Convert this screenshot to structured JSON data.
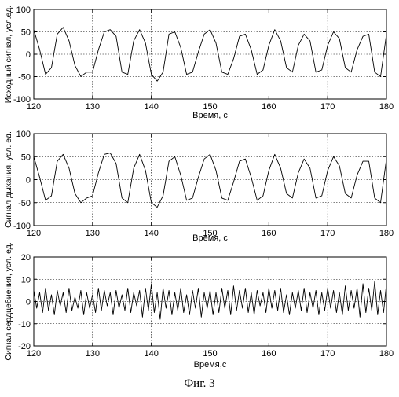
{
  "figure": {
    "caption": "Фиг. 3"
  },
  "chart_data": [
    {
      "type": "line",
      "xlabel": "Время, с",
      "ylabel": "Исходный сигнал, усл.ед.",
      "xlim": [
        120,
        180
      ],
      "ylim": [
        -100,
        100
      ],
      "xticks": [
        120,
        130,
        140,
        150,
        160,
        170,
        180
      ],
      "yticks": [
        100,
        50,
        0,
        -50,
        -100
      ],
      "grid": true,
      "series": [
        {
          "x": [
            120,
            121,
            122,
            123,
            124,
            125,
            126,
            127,
            128,
            129,
            130,
            131,
            132,
            133,
            134,
            135,
            136,
            137,
            138,
            139,
            140,
            141,
            142,
            143,
            144,
            145,
            146,
            147,
            148,
            149,
            150,
            151,
            152,
            153,
            154,
            155,
            156,
            157,
            158,
            159,
            160,
            161,
            162,
            163,
            164,
            165,
            166,
            167,
            168,
            169,
            170,
            171,
            172,
            173,
            174,
            175,
            176,
            177,
            178,
            179,
            180
          ],
          "y": [
            55,
            10,
            -45,
            -30,
            45,
            60,
            30,
            -25,
            -50,
            -40,
            -40,
            10,
            50,
            55,
            40,
            -40,
            -45,
            30,
            55,
            25,
            -45,
            -60,
            -40,
            45,
            50,
            15,
            -45,
            -40,
            5,
            45,
            55,
            25,
            -40,
            -45,
            -10,
            40,
            45,
            10,
            -45,
            -35,
            20,
            55,
            30,
            -30,
            -40,
            20,
            45,
            30,
            -40,
            -35,
            20,
            50,
            35,
            -30,
            -40,
            10,
            40,
            45,
            -40,
            -50,
            45
          ]
        }
      ]
    },
    {
      "type": "line",
      "xlabel": "Время, с",
      "ylabel": "Сигнал дыхания, усл. ед.",
      "xlim": [
        120,
        180
      ],
      "ylim": [
        -100,
        100
      ],
      "xticks": [
        120,
        130,
        140,
        150,
        160,
        170,
        180
      ],
      "yticks": [
        100,
        50,
        0,
        -50,
        -100
      ],
      "grid": true,
      "series": [
        {
          "x": [
            120,
            121,
            122,
            123,
            124,
            125,
            126,
            127,
            128,
            129,
            130,
            131,
            132,
            133,
            134,
            135,
            136,
            137,
            138,
            139,
            140,
            141,
            142,
            143,
            144,
            145,
            146,
            147,
            148,
            149,
            150,
            151,
            152,
            153,
            154,
            155,
            156,
            157,
            158,
            159,
            160,
            161,
            162,
            163,
            164,
            165,
            166,
            167,
            168,
            169,
            170,
            171,
            172,
            173,
            174,
            175,
            176,
            177,
            178,
            179,
            180
          ],
          "y": [
            50,
            5,
            -45,
            -35,
            40,
            55,
            25,
            -30,
            -50,
            -40,
            -35,
            15,
            55,
            58,
            35,
            -40,
            -50,
            25,
            55,
            20,
            -50,
            -60,
            -35,
            40,
            50,
            10,
            -45,
            -40,
            5,
            45,
            55,
            20,
            -40,
            -45,
            -5,
            40,
            45,
            5,
            -45,
            -35,
            20,
            55,
            25,
            -30,
            -40,
            15,
            45,
            25,
            -40,
            -35,
            20,
            50,
            30,
            -30,
            -40,
            10,
            40,
            40,
            -40,
            -50,
            45
          ]
        }
      ]
    },
    {
      "type": "line",
      "xlabel": "Время,с",
      "ylabel": "Сигнал сердцебиения, усл. ед.",
      "xlim": [
        120,
        180
      ],
      "ylim": [
        -20,
        20
      ],
      "xticks": [
        120,
        130,
        140,
        150,
        160,
        170,
        180
      ],
      "yticks": [
        20,
        10,
        0,
        -10,
        -20
      ],
      "grid": true,
      "series": [
        {
          "x": [
            120,
            120.5,
            121,
            121.5,
            122,
            122.5,
            123,
            123.5,
            124,
            124.5,
            125,
            125.5,
            126,
            126.5,
            127,
            127.5,
            128,
            128.5,
            129,
            129.5,
            130,
            130.5,
            131,
            131.5,
            132,
            132.5,
            133,
            133.5,
            134,
            134.5,
            135,
            135.5,
            136,
            136.5,
            137,
            137.5,
            138,
            138.5,
            139,
            139.5,
            140,
            140.5,
            141,
            141.5,
            142,
            142.5,
            143,
            143.5,
            144,
            144.5,
            145,
            145.5,
            146,
            146.5,
            147,
            147.5,
            148,
            148.5,
            149,
            149.5,
            150,
            150.5,
            151,
            151.5,
            152,
            152.5,
            153,
            153.5,
            154,
            154.5,
            155,
            155.5,
            156,
            156.5,
            157,
            157.5,
            158,
            158.5,
            159,
            159.5,
            160,
            160.5,
            161,
            161.5,
            162,
            162.5,
            163,
            163.5,
            164,
            164.5,
            165,
            165.5,
            166,
            166.5,
            167,
            167.5,
            168,
            168.5,
            169,
            169.5,
            170,
            170.5,
            171,
            171.5,
            172,
            172.5,
            173,
            173.5,
            174,
            174.5,
            175,
            175.5,
            176,
            176.5,
            177,
            177.5,
            178,
            178.5,
            179,
            179.5,
            180
          ],
          "y": [
            5,
            -3,
            4,
            -5,
            6,
            -4,
            3,
            -6,
            5,
            -2,
            4,
            -5,
            6,
            -4,
            2,
            -3,
            5,
            -6,
            4,
            -3,
            3,
            -5,
            6,
            -4,
            5,
            -2,
            4,
            -6,
            5,
            -3,
            3,
            -4,
            6,
            -5,
            4,
            -2,
            5,
            -7,
            6,
            -4,
            8,
            -5,
            4,
            -8,
            6,
            -3,
            5,
            -6,
            4,
            -4,
            6,
            -5,
            3,
            -6,
            5,
            -3,
            6,
            -7,
            4,
            -3,
            5,
            -6,
            4,
            -5,
            6,
            -3,
            5,
            -6,
            7,
            -4,
            5,
            -3,
            6,
            -5,
            4,
            -6,
            5,
            -2,
            4,
            -5,
            6,
            -3,
            5,
            -4,
            6,
            -5,
            3,
            -6,
            4,
            -3,
            5,
            -4,
            6,
            -5,
            4,
            -3,
            5,
            -6,
            4,
            -4,
            6,
            -3,
            5,
            -5,
            4,
            -6,
            7,
            -4,
            5,
            -3,
            6,
            -7,
            8,
            -5,
            6,
            -4,
            9,
            -6,
            5,
            -5,
            8
          ]
        }
      ]
    }
  ]
}
